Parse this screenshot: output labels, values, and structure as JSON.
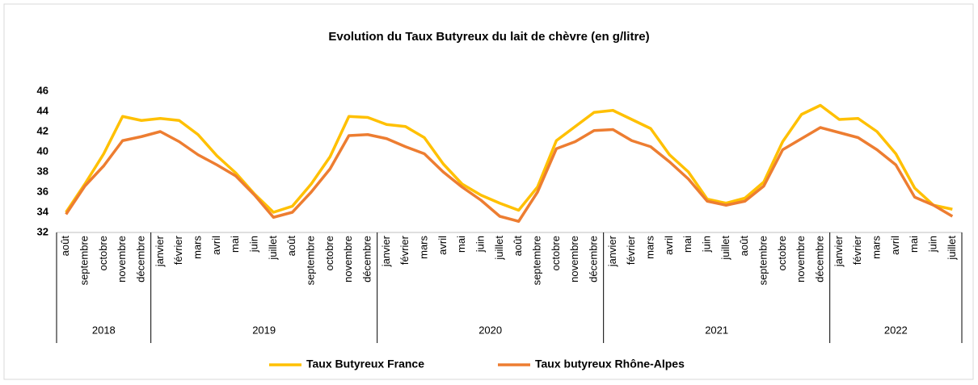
{
  "chart_data": {
    "type": "line",
    "title": "Evolution du Taux Butyreux du lait de chèvre (en g/litre)",
    "categories": [
      "août",
      "septembre",
      "octobre",
      "novembre",
      "décembre",
      "janvier",
      "février",
      "mars",
      "avril",
      "mai",
      "juin",
      "juillet",
      "août",
      "septembre",
      "octobre",
      "novembre",
      "décembre",
      "janvier",
      "février",
      "mars",
      "avril",
      "mai",
      "juin",
      "juillet",
      "août",
      "septembre",
      "octobre",
      "novembre",
      "décembre",
      "janvier",
      "février",
      "mars",
      "avril",
      "mai",
      "juin",
      "juillet",
      "août",
      "septembre",
      "octobre",
      "novembre",
      "décembre",
      "janvier",
      "février",
      "mars",
      "avril",
      "mai",
      "juin",
      "juillet"
    ],
    "year_groups": [
      {
        "label": "2018",
        "span": 5
      },
      {
        "label": "2019",
        "span": 12
      },
      {
        "label": "2020",
        "span": 12
      },
      {
        "label": "2021",
        "span": 12
      },
      {
        "label": "2022",
        "span": 7
      }
    ],
    "series": [
      {
        "name": "Taux Butyreux France",
        "color": "#ffc000",
        "values": [
          34.0,
          36.8,
          39.8,
          43.5,
          43.1,
          43.3,
          43.1,
          41.7,
          39.6,
          37.9,
          35.8,
          34.0,
          34.6,
          36.8,
          39.5,
          43.5,
          43.4,
          42.7,
          42.5,
          41.4,
          38.8,
          36.8,
          35.7,
          34.9,
          34.2,
          36.5,
          41.1,
          42.5,
          43.9,
          44.1,
          43.2,
          42.3,
          39.7,
          38.0,
          35.3,
          34.9,
          35.4,
          37.0,
          41.0,
          43.7,
          44.6,
          43.2,
          43.3,
          42.0,
          39.8,
          36.4,
          34.7,
          34.3
        ]
      },
      {
        "name": "Taux butyreux Rhône-Alpes",
        "color": "#ed7d31",
        "values": [
          33.8,
          36.6,
          38.6,
          41.1,
          41.5,
          42.0,
          41.0,
          39.7,
          38.7,
          37.6,
          35.7,
          33.5,
          34.0,
          36.0,
          38.3,
          41.6,
          41.7,
          41.3,
          40.5,
          39.8,
          38.0,
          36.5,
          35.2,
          33.6,
          33.1,
          36.0,
          40.3,
          41.0,
          42.1,
          42.2,
          41.1,
          40.5,
          39.0,
          37.3,
          35.1,
          34.7,
          35.1,
          36.6,
          40.2,
          41.3,
          42.4,
          41.9,
          41.4,
          40.2,
          38.7,
          35.5,
          34.7,
          33.6
        ]
      }
    ],
    "ylim": [
      32,
      46
    ],
    "yticks": [
      32,
      34,
      36,
      38,
      40,
      42,
      44,
      46
    ],
    "grid": false,
    "legend": "bottom"
  }
}
